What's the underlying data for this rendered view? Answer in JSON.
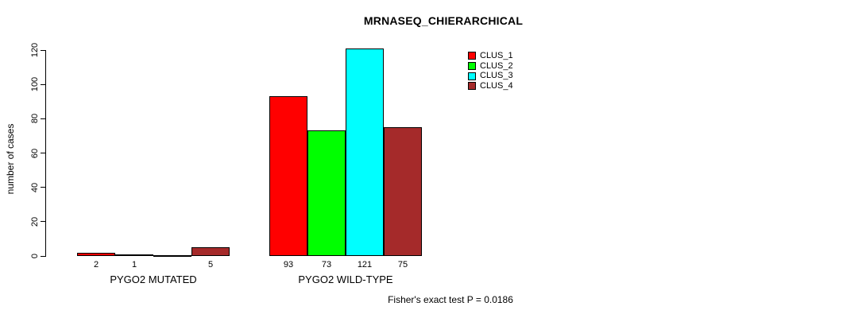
{
  "chart_data": {
    "type": "bar",
    "title": "MRNASEQ_CHIERARCHICAL",
    "ylabel": "number of cases",
    "xlabel": "",
    "ylim": [
      0,
      120
    ],
    "yticks": [
      0,
      20,
      40,
      60,
      80,
      100,
      120
    ],
    "grid": false,
    "legend_position": "top-right",
    "categories": [
      "PYGO2 MUTATED",
      "PYGO2 WILD-TYPE"
    ],
    "series": [
      {
        "name": "CLUS_1",
        "color": "#FF0000",
        "values": [
          2,
          93
        ]
      },
      {
        "name": "CLUS_2",
        "color": "#00FF00",
        "values": [
          1,
          73
        ]
      },
      {
        "name": "CLUS_3",
        "color": "#00FFFF",
        "values": [
          0,
          121
        ]
      },
      {
        "name": "CLUS_4",
        "color": "#A52A2A",
        "values": [
          5,
          75
        ]
      }
    ],
    "bar_value_labels": [
      [
        "2",
        "1",
        "",
        "5"
      ],
      [
        "93",
        "73",
        "121",
        "75"
      ]
    ],
    "annotation": "Fisher's exact test P = 0.0186"
  }
}
